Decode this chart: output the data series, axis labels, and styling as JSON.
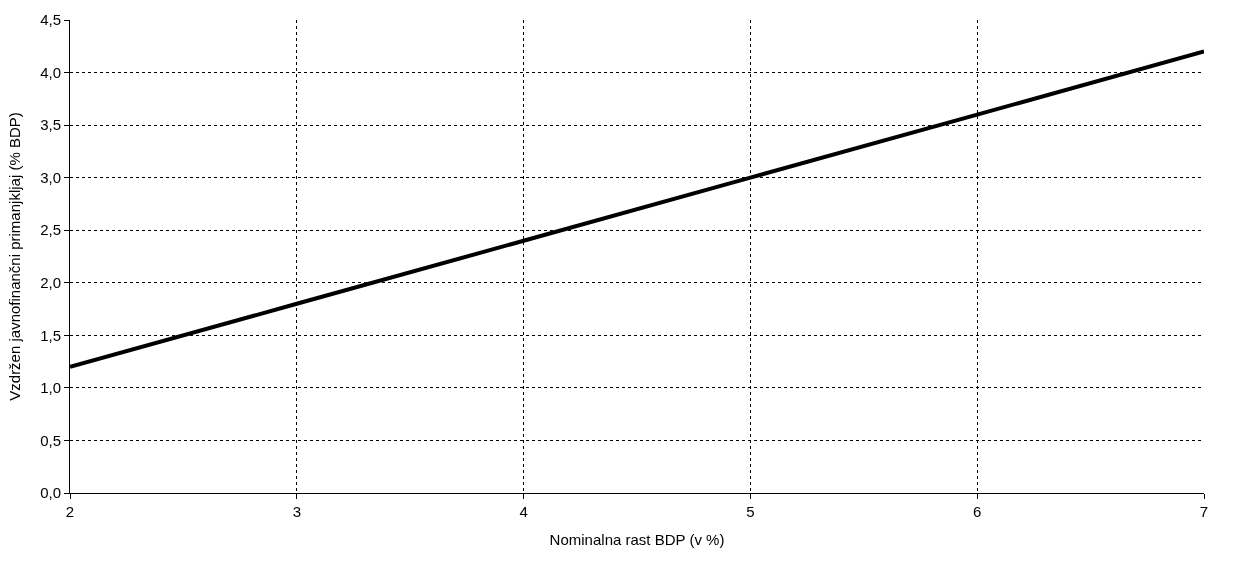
{
  "chart_data": {
    "type": "line",
    "xlabel": "Nominalna rast BDP (v %)",
    "ylabel": "Vzdržen javnofinančni primanjkljaj (% BDP)",
    "x": [
      2,
      3,
      4,
      5,
      6,
      7
    ],
    "series": [
      {
        "color": "#000000",
        "values": [
          1.2,
          1.8,
          2.4,
          3.0,
          3.6,
          4.2
        ]
      }
    ],
    "xlim": [
      2,
      7
    ],
    "xticks": [
      2,
      3,
      4,
      5,
      6,
      7
    ],
    "ylim": [
      0,
      4.5
    ],
    "yticks": [
      {
        "value": 0,
        "label": "0,0"
      },
      {
        "value": 0.5,
        "label": "0,5"
      },
      {
        "value": 1,
        "label": "1,0"
      },
      {
        "value": 1.5,
        "label": "1,5"
      },
      {
        "value": 2,
        "label": "2,0"
      },
      {
        "value": 2.5,
        "label": "2,5"
      },
      {
        "value": 3,
        "label": "3,0"
      },
      {
        "value": 3.5,
        "label": "3,5"
      },
      {
        "value": 4,
        "label": "4,0"
      },
      {
        "value": 4.5,
        "label": "4,5"
      }
    ],
    "grid": true,
    "marker": "none",
    "line_style": "solid"
  }
}
